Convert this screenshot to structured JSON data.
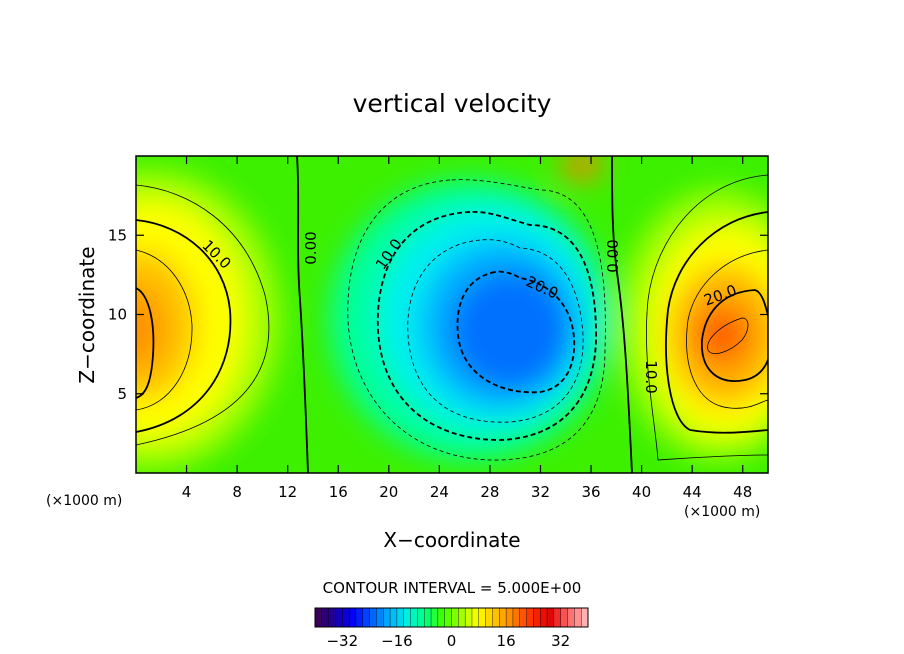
{
  "chart_data": {
    "type": "contour",
    "title": "vertical velocity",
    "xlabel": "X−coordinate",
    "ylabel": "Z−coordinate",
    "x_unit_left": "(×1000 m)",
    "x_unit_right": "(×1000 m)",
    "xlim": [
      0,
      50
    ],
    "ylim": [
      0,
      20
    ],
    "x_ticks": [
      4,
      8,
      12,
      16,
      20,
      24,
      28,
      32,
      36,
      40,
      44,
      48
    ],
    "y_ticks": [
      5,
      10,
      15
    ],
    "contour_interval_text": "CONTOUR INTERVAL = 5.000E+00",
    "contour_interval": 5,
    "contour_labels": [
      "10.0",
      "0.00",
      "10.0",
      "20.0",
      "0.00",
      "20.0",
      "10.0"
    ],
    "extrema": [
      {
        "kind": "max",
        "x": 0.5,
        "z": 9.5,
        "value": 22
      },
      {
        "kind": "min",
        "x": 30.5,
        "z": 9.5,
        "value": -28
      },
      {
        "kind": "max",
        "x": 47,
        "z": 8.5,
        "value": 30
      }
    ],
    "colorbar": {
      "min": -40,
      "max": 40,
      "tick_labels": [
        "−32",
        "−16",
        "0",
        "16",
        "32"
      ],
      "tick_values": [
        -32,
        -16,
        0,
        16,
        32
      ],
      "colors": [
        "#3a005a",
        "#1a00a8",
        "#0000ff",
        "#0060ff",
        "#00b0ff",
        "#00f0e0",
        "#00ff80",
        "#40ff00",
        "#9bff00",
        "#ffff00",
        "#ffc000",
        "#ff8000",
        "#ff3000",
        "#e00000",
        "#ff6060",
        "#ffb0b0"
      ]
    }
  }
}
